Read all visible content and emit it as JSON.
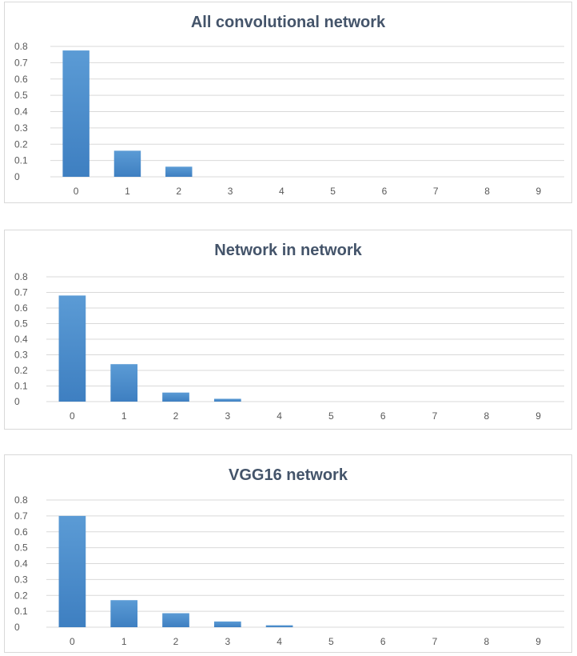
{
  "style": {
    "bar_color": "#5b9bd5",
    "bar_color_dark": "#3e7fc1",
    "grid_color": "#d9d9d9",
    "tick_color": "#595959",
    "title_color": "#44546a"
  },
  "chart_data": [
    {
      "type": "bar",
      "title": "All convolutional network",
      "categories": [
        "0",
        "1",
        "2",
        "3",
        "4",
        "5",
        "6",
        "7",
        "8",
        "9"
      ],
      "values": [
        0.775,
        0.16,
        0.062,
        0,
        0,
        0,
        0,
        0,
        0,
        0
      ],
      "yticks": [
        "0",
        "0.1",
        "0.2",
        "0.3",
        "0.4",
        "0.5",
        "0.6",
        "0.7",
        "0.8"
      ],
      "ylim": [
        0,
        0.8
      ],
      "xlabel": "",
      "ylabel": "",
      "grid": true,
      "legend": "none"
    },
    {
      "type": "bar",
      "title": "Network in network",
      "categories": [
        "0",
        "1",
        "2",
        "3",
        "4",
        "5",
        "6",
        "7",
        "8",
        "9"
      ],
      "values": [
        0.68,
        0.24,
        0.058,
        0.018,
        0,
        0,
        0,
        0,
        0,
        0
      ],
      "yticks": [
        "0",
        "0.1",
        "0.2",
        "0.3",
        "0.4",
        "0.5",
        "0.6",
        "0.7",
        "0.8"
      ],
      "ylim": [
        0,
        0.8
      ],
      "xlabel": "",
      "ylabel": "",
      "grid": true,
      "legend": "none"
    },
    {
      "type": "bar",
      "title": "VGG16 network",
      "categories": [
        "0",
        "1",
        "2",
        "3",
        "4",
        "5",
        "6",
        "7",
        "8",
        "9"
      ],
      "values": [
        0.7,
        0.17,
        0.088,
        0.036,
        0.012,
        0,
        0,
        0,
        0,
        0
      ],
      "yticks": [
        "0",
        "0.1",
        "0.2",
        "0.3",
        "0.4",
        "0.5",
        "0.6",
        "0.7",
        "0.8"
      ],
      "ylim": [
        0,
        0.8
      ],
      "xlabel": "",
      "ylabel": "",
      "grid": true,
      "legend": "none"
    }
  ]
}
